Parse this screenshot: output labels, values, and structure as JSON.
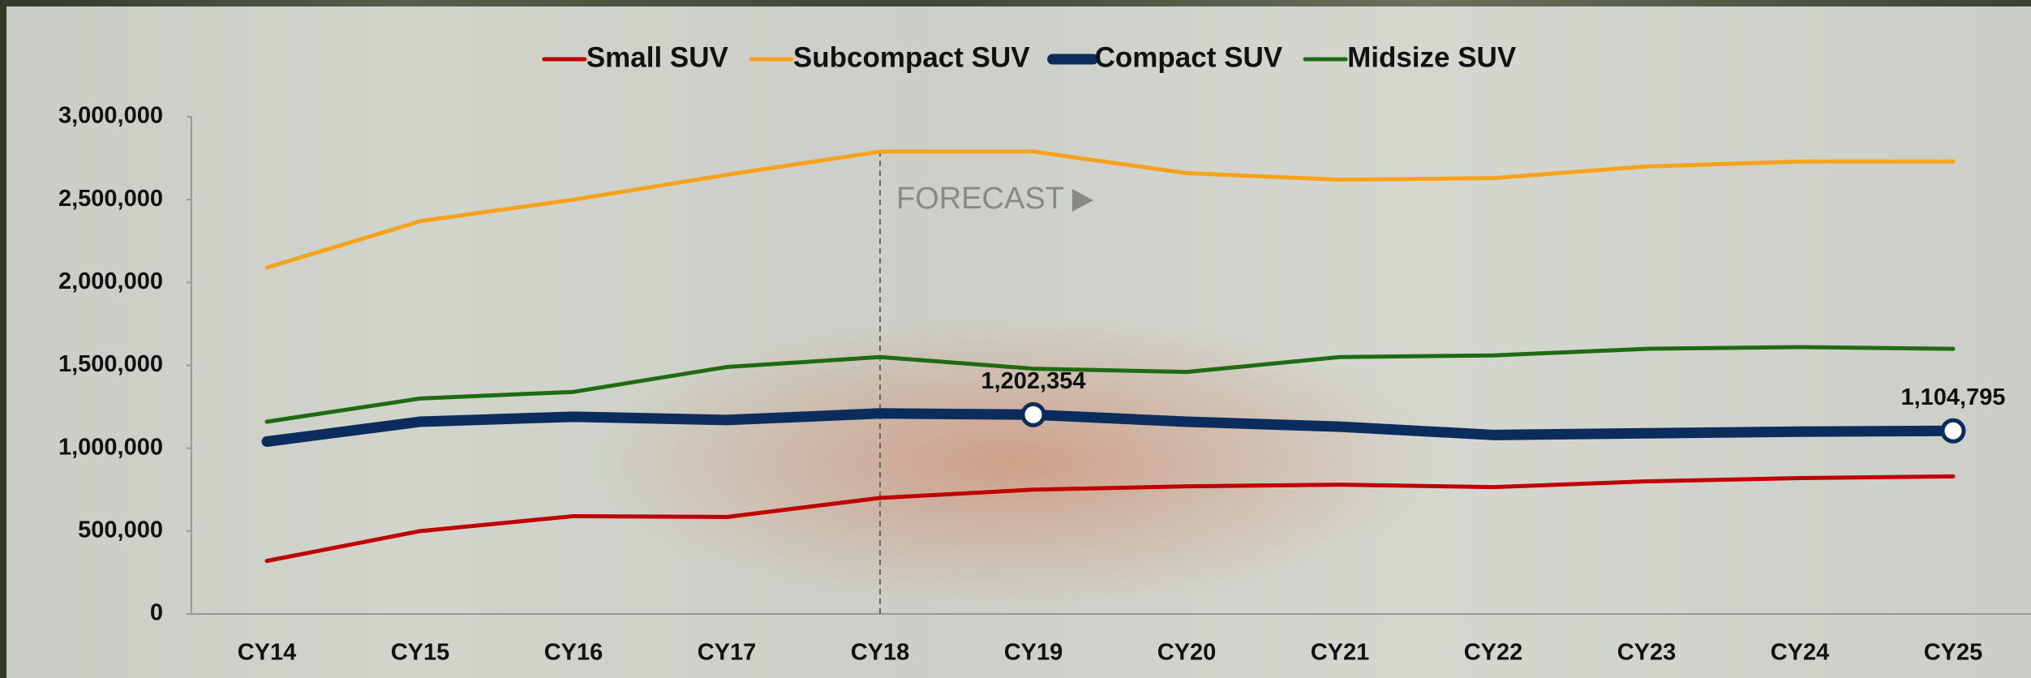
{
  "chart_data": {
    "type": "line",
    "categories": [
      "CY14",
      "CY15",
      "CY16",
      "CY17",
      "CY18",
      "CY19",
      "CY20",
      "CY21",
      "CY22",
      "CY23",
      "CY24",
      "CY25"
    ],
    "series": [
      {
        "name": "Small SUV",
        "color": "#c00000",
        "width": 5,
        "values": [
          320000,
          500000,
          590000,
          585000,
          700000,
          750000,
          770000,
          780000,
          765000,
          800000,
          820000,
          830000
        ]
      },
      {
        "name": "Subcompact SUV",
        "color": "#f7a21b",
        "width": 5,
        "values": [
          2090000,
          2370000,
          2500000,
          2650000,
          2790000,
          2790000,
          2660000,
          2620000,
          2630000,
          2700000,
          2730000,
          2730000
        ]
      },
      {
        "name": "Compact SUV",
        "color": "#0b2d5e",
        "width": 13,
        "values": [
          1040000,
          1160000,
          1190000,
          1170000,
          1210000,
          1202354,
          1160000,
          1130000,
          1080000,
          1090000,
          1100000,
          1104795
        ],
        "value_labels": [
          null,
          null,
          null,
          null,
          null,
          "1,202,354",
          null,
          null,
          null,
          null,
          null,
          "1,104,795"
        ]
      },
      {
        "name": "Midsize SUV",
        "color": "#1e6b12",
        "width": 5,
        "values": [
          1160000,
          1300000,
          1340000,
          1490000,
          1550000,
          1480000,
          1460000,
          1550000,
          1560000,
          1600000,
          1610000,
          1600000
        ]
      }
    ],
    "ylim": [
      0,
      3000000
    ],
    "yticks": [
      0,
      {
        "value": 500000,
        "label": "500,000"
      },
      {
        "value": 1000000,
        "label": "1,000,000"
      },
      {
        "value": 1500000,
        "label": "1,500,000"
      },
      {
        "value": 2000000,
        "label": "2,000,000"
      },
      {
        "value": 2500000,
        "label": "2,500,000"
      },
      {
        "value": 3000000,
        "label": "3,000,000"
      }
    ],
    "grid": false,
    "legend": "top",
    "annotations": [
      {
        "text": "FORECAST",
        "x": "CY18"
      }
    ]
  }
}
